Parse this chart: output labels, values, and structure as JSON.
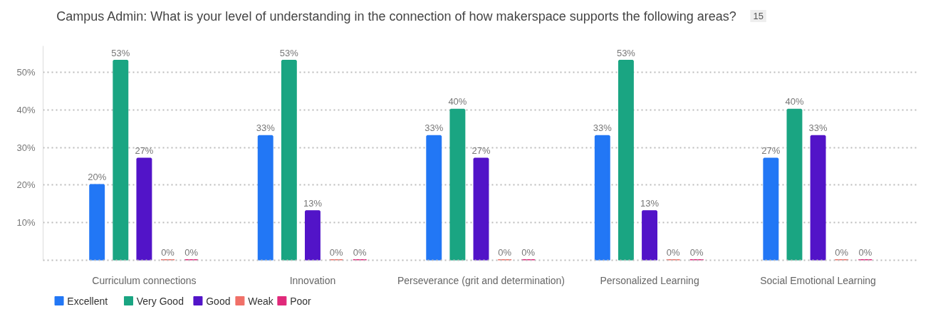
{
  "chart_data": {
    "type": "bar",
    "title": "Campus Admin: What is your level of understanding in the connection of how makerspace supports the following areas?",
    "annotations": [
      "15"
    ],
    "categories": [
      "Curriculum connections",
      "Innovation",
      "Perseverance (grit and determination)",
      "Personalized Learning",
      "Social Emotional Learning"
    ],
    "series": [
      {
        "name": "Excellent",
        "color": "#2277f5",
        "values": [
          20,
          33,
          33,
          33,
          27
        ],
        "value_labels": [
          "20%",
          "33%",
          "33%",
          "33%",
          "27%"
        ]
      },
      {
        "name": "Very Good",
        "color": "#1aa582",
        "values": [
          53,
          53,
          40,
          53,
          40
        ],
        "value_labels": [
          "53%",
          "53%",
          "40%",
          "53%",
          "40%"
        ]
      },
      {
        "name": "Good",
        "color": "#5214c8",
        "values": [
          27,
          13,
          27,
          13,
          33
        ],
        "value_labels": [
          "27%",
          "13%",
          "27%",
          "13%",
          "33%"
        ]
      },
      {
        "name": "Weak",
        "color": "#f07068",
        "values": [
          0,
          0,
          0,
          0,
          0
        ],
        "value_labels": [
          "0%",
          "0%",
          "0%",
          "0%",
          "0%"
        ]
      },
      {
        "name": "Poor",
        "color": "#e0297a",
        "values": [
          0,
          0,
          0,
          0,
          0
        ],
        "value_labels": [
          "0%",
          "0%",
          "0%",
          "0%",
          "0%"
        ]
      }
    ],
    "ylim": [
      0,
      57
    ],
    "yticks": [
      {
        "value": 0,
        "label": null
      },
      {
        "value": 10,
        "label": "10%"
      },
      {
        "value": 20,
        "label": "20%"
      },
      {
        "value": 30,
        "label": "30%"
      },
      {
        "value": 40,
        "label": "40%"
      },
      {
        "value": 50,
        "label": "50%"
      }
    ],
    "grid": "y",
    "legend": "bottom left"
  }
}
